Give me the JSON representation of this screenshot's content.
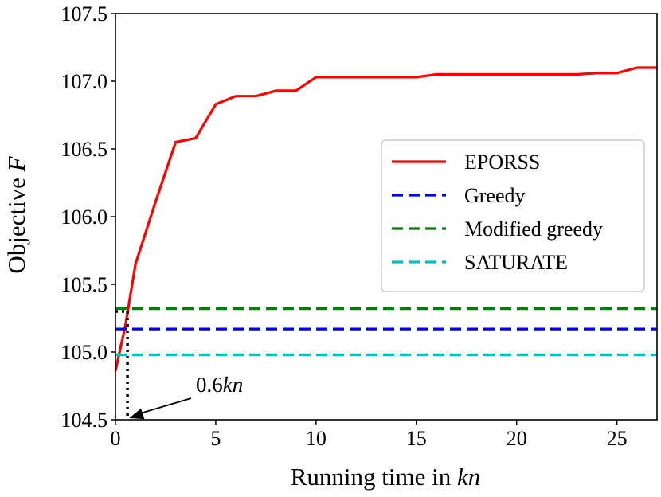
{
  "chart_data": {
    "type": "line",
    "xlabel": "Running time in ",
    "xlabel_italic": "kn",
    "ylabel": "Objective ",
    "ylabel_italic": "F",
    "xlim": [
      0,
      27
    ],
    "ylim": [
      104.5,
      107.5
    ],
    "xticks": [
      0,
      5,
      10,
      15,
      20,
      25
    ],
    "xtick_labels": [
      "0",
      "5",
      "10",
      "15",
      "20",
      "25"
    ],
    "yticks": [
      104.5,
      105.0,
      105.5,
      106.0,
      106.5,
      107.0,
      107.5
    ],
    "ytick_labels": [
      "104.5",
      "105.0",
      "105.5",
      "106.0",
      "106.5",
      "107.0",
      "107.5"
    ],
    "grid": false,
    "legend_position": "center-right",
    "series": [
      {
        "name": "EPORSS",
        "style": "solid",
        "color": "#ff0000",
        "x": [
          0,
          0.5,
          1,
          2,
          3,
          4,
          5,
          6,
          7,
          8,
          9,
          10,
          11,
          12,
          13,
          14,
          15,
          16,
          17,
          18,
          19,
          20,
          21,
          22,
          23,
          24,
          25,
          26,
          27
        ],
        "y": [
          104.86,
          105.2,
          105.65,
          106.11,
          106.55,
          106.58,
          106.83,
          106.89,
          106.89,
          106.93,
          106.93,
          107.03,
          107.03,
          107.03,
          107.03,
          107.03,
          107.03,
          107.05,
          107.05,
          107.05,
          107.05,
          107.05,
          107.05,
          107.05,
          107.05,
          107.06,
          107.06,
          107.1,
          107.1
        ]
      },
      {
        "name": "Greedy",
        "style": "dashed",
        "color": "#0000ff",
        "constant": 105.17
      },
      {
        "name": "Modified greedy",
        "style": "dashed",
        "color": "#008000",
        "constant": 105.32
      },
      {
        "name": "SATURATE",
        "style": "dashed",
        "color": "#00bfbf",
        "constant": 104.98
      }
    ],
    "annotation": {
      "text": "0.6",
      "text_italic": "kn",
      "x": 0.6,
      "marker_color": "#000000"
    }
  }
}
